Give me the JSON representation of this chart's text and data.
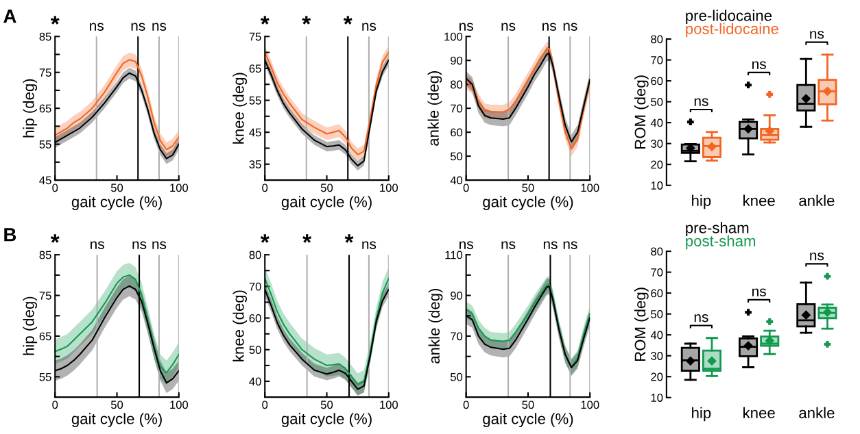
{
  "chart_data": [
    {
      "type": "line",
      "xlabel": "gait cycle (%)",
      "ylabel": "hip (deg)",
      "xlim": [
        0,
        100
      ],
      "xticks": [
        0,
        50,
        100
      ],
      "ylim": [
        45,
        85
      ],
      "yticks": [
        45,
        {
          "value": 50,
          "label": null
        },
        55,
        {
          "value": 60,
          "label": null
        },
        65,
        {
          "value": 70,
          "label": null
        },
        75,
        {
          "value": 80,
          "label": null
        },
        85
      ],
      "x": [
        0,
        5,
        10,
        15,
        20,
        30,
        40,
        50,
        55,
        60,
        65,
        70,
        75,
        80,
        85,
        90,
        95,
        100
      ],
      "series": [
        {
          "color": "#f26522",
          "values": [
            57.5,
            58.5,
            59.5,
            61,
            62,
            65,
            69.5,
            75,
            77.5,
            78.5,
            78,
            74,
            68,
            61,
            56,
            53.5,
            54.5,
            57
          ],
          "lower": [
            55.5,
            56.5,
            57.5,
            59,
            60,
            63,
            67.5,
            73,
            75.5,
            76.5,
            76,
            72,
            66,
            59,
            54,
            51.5,
            52.5,
            55
          ],
          "upper": [
            59.5,
            60.5,
            61.5,
            63,
            64,
            67,
            71.5,
            77,
            79.5,
            80.5,
            80,
            76,
            70,
            63,
            58,
            55.5,
            56.5,
            59
          ]
        },
        {
          "color": "#000000",
          "values": [
            55.5,
            56.5,
            57.5,
            58.5,
            59.5,
            62.5,
            66.5,
            71,
            73.5,
            74.8,
            74,
            70,
            64.5,
            58,
            53.5,
            51,
            52,
            55
          ],
          "lower": [
            54,
            55,
            56,
            57,
            58,
            61,
            65,
            69.5,
            72,
            73.3,
            72.5,
            68.5,
            63,
            56.5,
            52,
            49.5,
            50.5,
            53.5
          ],
          "upper": [
            57,
            58,
            59,
            60,
            61,
            64,
            68,
            72.5,
            75,
            76.3,
            75.5,
            71.5,
            66,
            59.5,
            55,
            52.5,
            53.5,
            56.5
          ]
        }
      ],
      "ref_lines": [
        {
          "axis": "x",
          "value": 33.5,
          "color": "#b0b0b0"
        },
        {
          "axis": "x",
          "value": 67,
          "color": "#000000"
        },
        {
          "axis": "x",
          "value": 84,
          "color": "#b0b0b0"
        },
        {
          "axis": "x",
          "value": 100,
          "color": "#b0b0b0"
        }
      ],
      "title": "A",
      "annotations": [
        "*",
        "ns",
        "ns",
        "ns"
      ]
    },
    {
      "type": "line",
      "xlabel": "gait cycle (%)",
      "ylabel": "knee (deg)",
      "xlim": [
        0,
        100
      ],
      "xticks": [
        0,
        50,
        100
      ],
      "ylim": [
        30,
        75
      ],
      "yticks": [
        35,
        {
          "value": 40,
          "label": null
        },
        45,
        {
          "value": 50,
          "label": null
        },
        55,
        {
          "value": 60,
          "label": null
        },
        65,
        {
          "value": 70,
          "label": null
        },
        75
      ],
      "x": [
        0,
        5,
        10,
        15,
        20,
        30,
        40,
        50,
        55,
        60,
        65,
        70,
        75,
        80,
        85,
        90,
        95,
        100
      ],
      "series": [
        {
          "color": "#f26522",
          "values": [
            70,
            65.5,
            60.5,
            57,
            54,
            49,
            46.5,
            44.5,
            45,
            45.5,
            43.5,
            40,
            38,
            39,
            49,
            60,
            67,
            70
          ],
          "lower": [
            68,
            63.5,
            58.5,
            55,
            52,
            47,
            44.5,
            42.5,
            43,
            43.5,
            41.5,
            38,
            36,
            37,
            47,
            58,
            65,
            68
          ],
          "upper": [
            72,
            67.5,
            62.5,
            59,
            56,
            51,
            48.5,
            46.5,
            47,
            47.5,
            45.5,
            42,
            40,
            41,
            51,
            62,
            69,
            72
          ]
        },
        {
          "color": "#000000",
          "values": [
            67.5,
            63,
            58,
            54,
            51,
            46,
            42.5,
            40.5,
            40.7,
            41,
            39.5,
            36.5,
            34.5,
            36,
            47,
            58,
            64,
            67.5
          ],
          "lower": [
            66,
            61.5,
            56.5,
            52.5,
            49.5,
            44.5,
            41,
            39,
            39.2,
            39.5,
            38,
            35,
            33,
            34.5,
            45.5,
            56.5,
            62.5,
            66
          ],
          "upper": [
            69,
            64.5,
            59.5,
            55.5,
            52.5,
            47.5,
            44,
            42,
            42.2,
            42.5,
            41,
            38,
            36,
            37.5,
            48.5,
            59.5,
            65.5,
            69
          ]
        }
      ],
      "ref_lines": [
        {
          "axis": "x",
          "value": 33.5,
          "color": "#b0b0b0"
        },
        {
          "axis": "x",
          "value": 67,
          "color": "#000000"
        },
        {
          "axis": "x",
          "value": 84,
          "color": "#b0b0b0"
        },
        {
          "axis": "x",
          "value": 100,
          "color": "#b0b0b0"
        }
      ],
      "annotations": [
        "*",
        "*",
        "*",
        "ns"
      ]
    },
    {
      "type": "line",
      "xlabel": "gait cycle (%)",
      "ylabel": "ankle (deg)",
      "xlim": [
        0,
        100
      ],
      "xticks": [
        0,
        50,
        100
      ],
      "ylim": [
        40,
        100
      ],
      "yticks": [
        40,
        50,
        60,
        70,
        80,
        90,
        100
      ],
      "x": [
        0,
        5,
        10,
        15,
        20,
        30,
        35,
        40,
        50,
        55,
        60,
        65,
        67,
        70,
        75,
        80,
        85,
        90,
        95,
        100
      ],
      "series": [
        {
          "color": "#f26522",
          "values": [
            81,
            79,
            73,
            69,
            68.5,
            68.5,
            69.5,
            73,
            82,
            86.5,
            91,
            94.5,
            95,
            88,
            73,
            60,
            53,
            57,
            70,
            81
          ],
          "lower": [
            78,
            76,
            70,
            66,
            65.5,
            65.5,
            66.5,
            70,
            79,
            83.5,
            88,
            91.5,
            92,
            85,
            70,
            57,
            50,
            54,
            67,
            78
          ],
          "upper": [
            84,
            82,
            76,
            72,
            71.5,
            71.5,
            72.5,
            76,
            85,
            89.5,
            94,
            97.5,
            98,
            91,
            76,
            63,
            56,
            60,
            73,
            84
          ]
        },
        {
          "color": "#000000",
          "values": [
            82.5,
            80,
            71,
            67,
            66,
            65.5,
            66,
            70,
            79,
            84,
            88,
            92.5,
            93,
            88,
            75,
            63,
            56,
            60,
            71,
            82
          ],
          "lower": [
            79.5,
            77,
            68,
            64,
            63,
            62.5,
            63,
            67,
            76,
            81,
            85,
            89.5,
            90,
            85,
            72,
            60,
            53,
            57,
            68,
            79
          ],
          "upper": [
            85.5,
            83,
            74,
            70,
            69,
            68.5,
            69,
            73,
            82,
            87,
            91,
            95.5,
            96,
            91,
            78,
            66,
            59,
            63,
            74,
            85
          ]
        }
      ],
      "ref_lines": [
        {
          "axis": "x",
          "value": 34,
          "color": "#b0b0b0"
        },
        {
          "axis": "x",
          "value": 67,
          "color": "#000000"
        },
        {
          "axis": "x",
          "value": 84,
          "color": "#b0b0b0"
        },
        {
          "axis": "x",
          "value": 100,
          "color": "#b0b0b0"
        }
      ],
      "annotations": [
        "ns",
        "ns",
        "ns",
        "ns"
      ]
    },
    {
      "type": "box",
      "ylabel": "ROM (deg)",
      "categories": [
        "hip",
        "knee",
        "ankle"
      ],
      "ylim": [
        10,
        80
      ],
      "yticks": [
        10,
        20,
        30,
        40,
        50,
        60,
        70,
        80
      ],
      "legend": "top left",
      "series": [
        {
          "name": "pre-lidocaine",
          "color": "#000000",
          "boxes": [
            {
              "low": 21.5,
              "q1": 25.5,
              "median": 26.5,
              "q3": 29.5,
              "high": 29.8,
              "mean": 27.8,
              "outliers": [
                40.3
              ]
            },
            {
              "low": 24.8,
              "q1": 32.5,
              "median": 37,
              "q3": 40.3,
              "high": 41.5,
              "mean": 37,
              "outliers": [
                58
              ]
            },
            {
              "low": 38,
              "q1": 45.8,
              "median": 49,
              "q3": 58,
              "high": 70.5,
              "mean": 51.5
            }
          ]
        },
        {
          "name": "post-lidocaine",
          "color": "#f26522",
          "boxes": [
            {
              "low": 21.8,
              "q1": 23.5,
              "median": 28.8,
              "q3": 32.8,
              "high": 35.5,
              "mean": 28.5
            },
            {
              "low": 30.5,
              "q1": 31.8,
              "median": 34,
              "q3": 37,
              "high": 43.5,
              "mean": 36,
              "outliers": [
                53.5
              ]
            },
            {
              "low": 41,
              "q1": 48.8,
              "median": 55,
              "q3": 60.5,
              "high": 72.5,
              "mean": 55
            }
          ]
        }
      ],
      "annotations": [
        "ns",
        "ns",
        "ns"
      ]
    },
    {
      "type": "line",
      "xlabel": "gait cycle (%)",
      "ylabel": "hip (deg)",
      "xlim": [
        0,
        100
      ],
      "xticks": [
        0,
        50,
        100
      ],
      "ylim": [
        50,
        85
      ],
      "yticks": [
        55,
        {
          "value": 60,
          "label": null
        },
        65,
        {
          "value": 70,
          "label": null
        },
        75,
        {
          "value": 80,
          "label": null
        },
        85
      ],
      "x": [
        0,
        5,
        10,
        15,
        20,
        30,
        40,
        50,
        55,
        60,
        65,
        70,
        75,
        80,
        85,
        90,
        95,
        100
      ],
      "series": [
        {
          "color": "#119a4f",
          "values": [
            61.2,
            61.8,
            62.5,
            64,
            65.5,
            68.5,
            73,
            78,
            79.5,
            80,
            79,
            75,
            69,
            62.5,
            57.5,
            56,
            58,
            60.5
          ],
          "lower": [
            58.2,
            58.8,
            59.5,
            61,
            62.5,
            65.5,
            70,
            75,
            76.5,
            77,
            76,
            72,
            66,
            59.5,
            54.5,
            53,
            55,
            57.5
          ],
          "upper": [
            64.2,
            64.8,
            65.5,
            67,
            68.5,
            71.5,
            76,
            81,
            82.5,
            83,
            82,
            78,
            72,
            65.5,
            60.5,
            59,
            61,
            63.5
          ]
        },
        {
          "color": "#000000",
          "values": [
            56.5,
            57,
            57.8,
            59,
            60.5,
            64,
            69.5,
            74.5,
            76.5,
            77.3,
            76.5,
            73.5,
            68,
            62,
            56.5,
            53.5,
            54.5,
            56.5
          ],
          "lower": [
            54,
            54.5,
            55.3,
            56.5,
            58,
            61.5,
            67,
            72,
            74,
            74.8,
            74,
            71,
            65.5,
            59.5,
            54,
            51,
            52,
            54
          ],
          "upper": [
            59,
            59.5,
            60.3,
            61.5,
            63,
            66.5,
            72,
            77,
            79,
            79.8,
            79,
            76,
            70.5,
            64.5,
            59,
            56,
            57,
            59
          ]
        }
      ],
      "ref_lines": [
        {
          "axis": "x",
          "value": 34,
          "color": "#b0b0b0"
        },
        {
          "axis": "x",
          "value": 68,
          "color": "#000000"
        },
        {
          "axis": "x",
          "value": 84,
          "color": "#b0b0b0"
        },
        {
          "axis": "x",
          "value": 100,
          "color": "#b0b0b0"
        }
      ],
      "title": "B",
      "annotations": [
        "*",
        "ns",
        "ns",
        "ns"
      ]
    },
    {
      "type": "line",
      "xlabel": "gait cycle (%)",
      "ylabel": "knee (deg)",
      "xlim": [
        0,
        100
      ],
      "xticks": [
        0,
        50,
        100
      ],
      "ylim": [
        35,
        80
      ],
      "yticks": [
        40,
        {
          "value": 45,
          "label": null
        },
        50,
        {
          "value": 55,
          "label": null
        },
        60,
        {
          "value": 65,
          "label": null
        },
        70,
        {
          "value": 75,
          "label": null
        },
        80
      ],
      "x": [
        0,
        5,
        10,
        15,
        20,
        30,
        40,
        50,
        55,
        60,
        65,
        70,
        75,
        80,
        85,
        90,
        95,
        100
      ],
      "series": [
        {
          "color": "#119a4f",
          "values": [
            72.5,
            67.5,
            62,
            58,
            55,
            50,
            47,
            45,
            45.2,
            45.5,
            44,
            41.5,
            39,
            40,
            49,
            60,
            68,
            72.5
          ],
          "lower": [
            69,
            64,
            58.5,
            54.5,
            51.5,
            46.5,
            43.5,
            41.5,
            41.7,
            42,
            40.5,
            38,
            35.5,
            36.5,
            45.5,
            56.5,
            64.5,
            69
          ],
          "upper": [
            76,
            71,
            65.5,
            61.5,
            58.5,
            53.5,
            50.5,
            48.5,
            48.7,
            49,
            47.5,
            45,
            42.5,
            43.5,
            52.5,
            63.5,
            71.5,
            76
          ]
        },
        {
          "color": "#000000",
          "values": [
            69,
            64,
            58.5,
            54.5,
            51.5,
            47,
            43.5,
            42.3,
            42.8,
            43.5,
            42.5,
            40,
            37.5,
            38.5,
            48,
            59,
            65.5,
            69
          ],
          "lower": [
            67,
            62,
            56.5,
            52.5,
            49.5,
            45,
            41.5,
            40.3,
            40.8,
            41.5,
            40.5,
            38,
            35.5,
            36.5,
            46,
            57,
            63.5,
            67
          ],
          "upper": [
            71,
            66,
            60.5,
            56.5,
            53.5,
            49,
            45.5,
            44.3,
            44.8,
            45.5,
            44.5,
            42,
            39.5,
            40.5,
            50,
            61,
            67.5,
            71
          ]
        }
      ],
      "ref_lines": [
        {
          "axis": "x",
          "value": 34,
          "color": "#b0b0b0"
        },
        {
          "axis": "x",
          "value": 68,
          "color": "#000000"
        },
        {
          "axis": "x",
          "value": 84,
          "color": "#b0b0b0"
        },
        {
          "axis": "x",
          "value": 100,
          "color": "#b0b0b0"
        }
      ],
      "annotations": [
        "*",
        "*",
        "*",
        "ns"
      ]
    },
    {
      "type": "line",
      "xlabel": "gait cycle (%)",
      "ylabel": "ankle (deg)",
      "xlim": [
        0,
        100
      ],
      "xticks": [
        0,
        50,
        100
      ],
      "ylim": [
        40,
        110
      ],
      "yticks": [
        50,
        {
          "value": 60,
          "label": null
        },
        70,
        {
          "value": 80,
          "label": null
        },
        90,
        {
          "value": 100,
          "label": null
        },
        110
      ],
      "x": [
        0,
        5,
        10,
        15,
        20,
        30,
        35,
        40,
        50,
        55,
        60,
        65,
        67,
        70,
        75,
        80,
        85,
        90,
        95,
        100
      ],
      "series": [
        {
          "color": "#119a4f",
          "values": [
            83,
            81,
            74,
            70,
            68,
            67.5,
            68,
            72,
            81,
            86,
            90.5,
            95,
            95.5,
            89,
            74,
            61,
            55,
            59,
            71,
            81
          ],
          "lower": [
            79,
            77,
            70,
            66,
            64,
            63.5,
            64,
            68,
            77,
            82,
            86.5,
            91,
            91.5,
            85,
            70,
            57,
            51,
            55,
            67,
            77
          ],
          "upper": [
            87,
            85,
            78,
            74,
            72,
            71.5,
            72,
            76,
            85,
            90,
            94.5,
            99,
            99.5,
            93,
            78,
            65,
            59,
            63,
            75,
            85
          ]
        },
        {
          "color": "#000000",
          "values": [
            80,
            78,
            70,
            66,
            64.5,
            63.5,
            64,
            68,
            78.5,
            84,
            89,
            94,
            94.5,
            88,
            73,
            61,
            54.5,
            58,
            69,
            79
          ],
          "lower": [
            76,
            74,
            66,
            62,
            60.5,
            59.5,
            60,
            64,
            74.5,
            80,
            85,
            90,
            90.5,
            84,
            69,
            57,
            50.5,
            54,
            65,
            75
          ],
          "upper": [
            84,
            82,
            74,
            70,
            68.5,
            67.5,
            68,
            72,
            82.5,
            88,
            93,
            98,
            98.5,
            92,
            77,
            65,
            58.5,
            62,
            73,
            83
          ]
        }
      ],
      "ref_lines": [
        {
          "axis": "x",
          "value": 34,
          "color": "#b0b0b0"
        },
        {
          "axis": "x",
          "value": 68,
          "color": "#000000"
        },
        {
          "axis": "x",
          "value": 84,
          "color": "#b0b0b0"
        },
        {
          "axis": "x",
          "value": 100,
          "color": "#b0b0b0"
        }
      ],
      "annotations": [
        "ns",
        "ns",
        "ns",
        "ns"
      ]
    },
    {
      "type": "box",
      "ylabel": "ROM (deg)",
      "categories": [
        "hip",
        "knee",
        "ankle"
      ],
      "ylim": [
        10,
        80
      ],
      "yticks": [
        10,
        20,
        30,
        40,
        50,
        60,
        70,
        80
      ],
      "legend": "top left",
      "series": [
        {
          "name": "pre-sham",
          "color": "#000000",
          "boxes": [
            {
              "low": 18.5,
              "q1": 22.8,
              "median": 27.8,
              "q3": 33.8,
              "high": 35.8,
              "mean": 27.5
            },
            {
              "low": 24.5,
              "q1": 29.8,
              "median": 34.3,
              "q3": 38.3,
              "high": 39.3,
              "mean": 34.8,
              "outliers": [
                50.8
              ]
            },
            {
              "low": 41,
              "q1": 44,
              "median": 47,
              "q3": 54.7,
              "high": 65,
              "mean": 49.5
            }
          ]
        },
        {
          "name": "post-sham",
          "color": "#119a4f",
          "boxes": [
            {
              "low": 20.3,
              "q1": 22.8,
              "median": 23.8,
              "q3": 32.5,
              "high": 38.5,
              "mean": 27.5
            },
            {
              "low": 30.8,
              "q1": 34.8,
              "median": 35.8,
              "q3": 39.2,
              "high": 42,
              "mean": 37.2,
              "outliers": [
                46.3
              ]
            },
            {
              "low": 43,
              "q1": 48,
              "median": 50.5,
              "q3": 53,
              "high": 54.5,
              "mean": 50.8,
              "outliers": [
                35.5,
                68
              ]
            }
          ]
        }
      ],
      "annotations": [
        "ns",
        "ns",
        "ns"
      ]
    }
  ]
}
